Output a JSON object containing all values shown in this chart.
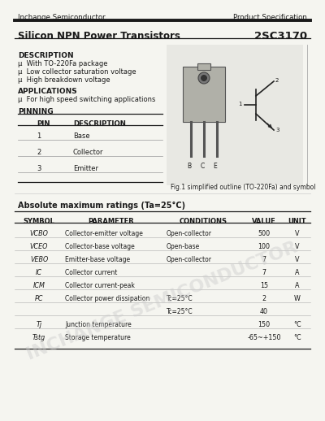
{
  "header_company": "Inchange Semiconductor",
  "header_right": "Product Specification",
  "title_left": "Silicon NPN Power Transistors",
  "title_right": "2SC3170",
  "description_title": "DESCRIPTION",
  "description_items": [
    "μ  With TO-220Fa package",
    "μ  Low collector saturation voltage",
    "μ  High breakdown voltage"
  ],
  "applications_title": "APPLICATIONS",
  "applications_items": [
    "μ  For high speed switching applications"
  ],
  "pinning_title": "PINNING",
  "pin_headers": [
    "PIN",
    "DESCRIPTION"
  ],
  "pin_rows": [
    [
      "1",
      "Base"
    ],
    [
      "2",
      "Collector"
    ],
    [
      "3",
      "Emitter"
    ]
  ],
  "fig_caption": "Fig.1 simplified outline (TO-220Fa) and symbol",
  "abs_max_title": "Absolute maximum ratings (Ta=25°C)",
  "table_headers": [
    "SYMBOL",
    "PARAMETER",
    "CONDITIONS",
    "VALUE",
    "UNIT"
  ],
  "abs_rows": [
    [
      "VCBO",
      "Collector-emitter voltage",
      "Open-collector",
      "500",
      "V"
    ],
    [
      "VCEO",
      "Collector-base voltage",
      "Open-base",
      "100",
      "V"
    ],
    [
      "VEBO",
      "Emitter-base voltage",
      "Open-collector",
      "7",
      "V"
    ],
    [
      "IC",
      "Collector current",
      "",
      "7",
      "A"
    ],
    [
      "ICM",
      "Collector current-peak",
      "",
      "15",
      "A"
    ],
    [
      "PC",
      "Collector power dissipation",
      "Tc=25°C",
      "2",
      "W"
    ],
    [
      "",
      "",
      "Tc=25°C",
      "40",
      ""
    ],
    [
      "Tj",
      "Junction temperature",
      "",
      "150",
      "°C"
    ],
    [
      "Tstg",
      "Storage temperature",
      "",
      "-65~+150",
      "°C"
    ]
  ],
  "watermark": "INCHANGE SEMICONDUCTOR",
  "bg_color": "#f5f5f0"
}
